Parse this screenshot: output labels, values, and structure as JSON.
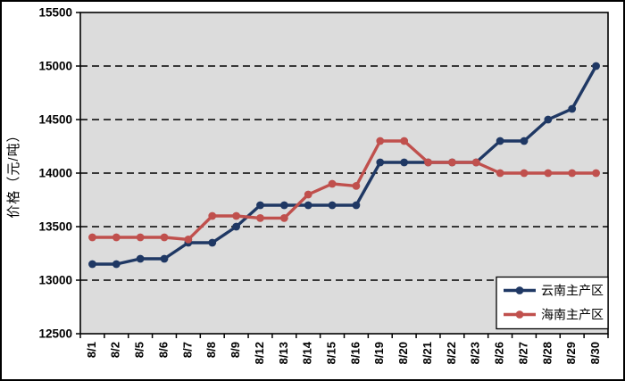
{
  "chart_data": {
    "type": "line",
    "title": "",
    "xlabel": "",
    "ylabel": "价格（元/吨）",
    "ylim": [
      12500,
      15500
    ],
    "ytick_step": 500,
    "ytick_labels": [
      "12500",
      "13000",
      "13500",
      "14000",
      "14500",
      "15000",
      "15500"
    ],
    "grid": "horizontal-dashed-at-13000-to-15000",
    "plot_bg_color": "#DCDCDC",
    "legend_position": "bottom-right-inside",
    "categories": [
      "8/1",
      "8/2",
      "8/5",
      "8/6",
      "8/7",
      "8/8",
      "8/9",
      "8/12",
      "8/13",
      "8/14",
      "8/15",
      "8/16",
      "8/19",
      "8/20",
      "8/21",
      "8/22",
      "8/23",
      "8/26",
      "8/27",
      "8/28",
      "8/29",
      "8/30"
    ],
    "series": [
      {
        "name": "云南主产区",
        "color": "#1F3864",
        "marker": "circle",
        "values": [
          13150,
          13150,
          13200,
          13200,
          13350,
          13350,
          13500,
          13700,
          13700,
          13700,
          13700,
          13700,
          14100,
          14100,
          14100,
          14100,
          14100,
          14300,
          14300,
          14500,
          14600,
          15000
        ]
      },
      {
        "name": "海南主产区",
        "color": "#C0504D",
        "marker": "circle",
        "values": [
          13400,
          13400,
          13400,
          13400,
          13380,
          13600,
          13600,
          13580,
          13580,
          13800,
          13900,
          13880,
          14300,
          14300,
          14100,
          14100,
          14100,
          14000,
          14000,
          14000,
          14000,
          14000
        ]
      }
    ]
  }
}
